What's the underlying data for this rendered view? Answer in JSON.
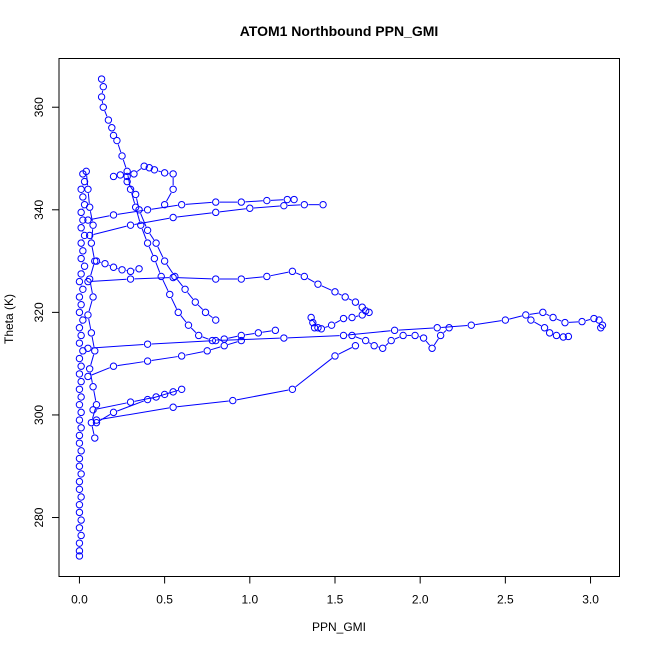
{
  "chart_data": {
    "type": "scatter",
    "title": "ATOM1 Northbound PPN_GMI",
    "xlabel": "PPN_GMI",
    "ylabel": "Theta (K)",
    "xlim": [
      -0.12,
      3.17
    ],
    "ylim": [
      268.5,
      369.5
    ],
    "xticks": [
      0.0,
      0.5,
      1.0,
      1.5,
      2.0,
      2.5,
      3.0
    ],
    "xtick_labels": [
      "0.0",
      "0.5",
      "1.0",
      "1.5",
      "2.0",
      "2.5",
      "3.0"
    ],
    "yticks": [
      280,
      300,
      320,
      340,
      360
    ],
    "ytick_labels": [
      "280",
      "300",
      "320",
      "340",
      "360"
    ],
    "grid": false,
    "marker": "open-circle",
    "connected": true,
    "color": "#0000FF",
    "series": [
      {
        "values": [
          [
            0.0,
            272.5
          ],
          [
            0.0,
            273.5
          ],
          [
            0.0,
            275.0
          ],
          [
            0.01,
            276.5
          ],
          [
            0.0,
            278.0
          ],
          [
            0.01,
            279.5
          ],
          [
            0.0,
            281.0
          ],
          [
            0.0,
            282.5
          ],
          [
            0.01,
            284.0
          ],
          [
            0.0,
            285.5
          ],
          [
            0.0,
            287.0
          ],
          [
            0.01,
            288.5
          ],
          [
            0.0,
            290.0
          ],
          [
            0.0,
            291.5
          ],
          [
            0.01,
            293.0
          ],
          [
            0.0,
            294.5
          ],
          [
            0.0,
            296.0
          ],
          [
            0.01,
            297.5
          ],
          [
            0.0,
            299.0
          ],
          [
            0.01,
            300.5
          ],
          [
            0.0,
            302.0
          ],
          [
            0.01,
            303.5
          ],
          [
            0.0,
            305.0
          ],
          [
            0.01,
            306.5
          ],
          [
            0.0,
            308.0
          ],
          [
            0.01,
            309.5
          ],
          [
            0.0,
            311.0
          ],
          [
            0.02,
            312.5
          ],
          [
            0.0,
            314.0
          ],
          [
            0.01,
            315.5
          ],
          [
            0.0,
            317.0
          ],
          [
            0.02,
            318.5
          ],
          [
            0.0,
            320.0
          ],
          [
            0.01,
            321.5
          ],
          [
            0.0,
            323.0
          ],
          [
            0.02,
            324.5
          ],
          [
            0.0,
            326.0
          ],
          [
            0.01,
            327.5
          ],
          [
            0.03,
            329.0
          ],
          [
            0.01,
            330.5
          ],
          [
            0.02,
            332.0
          ],
          [
            0.01,
            333.5
          ],
          [
            0.03,
            335.0
          ],
          [
            0.01,
            336.5
          ],
          [
            0.02,
            338.0
          ],
          [
            0.01,
            339.5
          ],
          [
            0.03,
            341.0
          ],
          [
            0.02,
            342.5
          ],
          [
            0.01,
            344.0
          ],
          [
            0.03,
            345.5
          ],
          [
            0.02,
            347.0
          ]
        ]
      },
      {
        "values": [
          [
            0.04,
            347.5
          ],
          [
            0.05,
            344.0
          ],
          [
            0.06,
            340.5
          ],
          [
            0.08,
            337.0
          ],
          [
            0.07,
            333.5
          ],
          [
            0.09,
            330.0
          ],
          [
            0.06,
            326.5
          ],
          [
            0.08,
            323.0
          ],
          [
            0.05,
            319.5
          ],
          [
            0.07,
            316.0
          ],
          [
            0.09,
            312.5
          ],
          [
            0.06,
            309.0
          ],
          [
            0.08,
            305.5
          ],
          [
            0.1,
            302.0
          ],
          [
            0.07,
            298.5
          ],
          [
            0.09,
            295.5
          ]
        ]
      },
      {
        "values": [
          [
            0.13,
            365.5
          ],
          [
            0.14,
            364.0
          ],
          [
            0.13,
            362.0
          ],
          [
            0.14,
            360.0
          ],
          [
            0.17,
            357.5
          ],
          [
            0.19,
            356.0
          ],
          [
            0.2,
            354.5
          ],
          [
            0.22,
            353.5
          ],
          [
            0.25,
            350.5
          ],
          [
            0.28,
            347.5
          ],
          [
            0.3,
            344.0
          ],
          [
            0.33,
            340.5
          ],
          [
            0.36,
            337.0
          ],
          [
            0.4,
            333.5
          ],
          [
            0.44,
            330.5
          ],
          [
            0.48,
            327.0
          ],
          [
            0.53,
            323.5
          ],
          [
            0.58,
            320.0
          ],
          [
            0.64,
            317.5
          ],
          [
            0.7,
            315.5
          ],
          [
            0.78,
            314.5
          ],
          [
            0.85,
            314.8
          ],
          [
            0.95,
            315.5
          ],
          [
            1.05,
            316.0
          ],
          [
            1.15,
            316.5
          ]
        ]
      },
      {
        "values": [
          [
            0.2,
            346.5
          ],
          [
            0.24,
            346.8
          ],
          [
            0.28,
            346.5
          ],
          [
            0.32,
            347.0
          ],
          [
            0.38,
            348.5
          ],
          [
            0.41,
            348.2
          ],
          [
            0.44,
            347.8
          ],
          [
            0.5,
            347.2
          ],
          [
            0.55,
            347.0
          ],
          [
            0.55,
            344.0
          ],
          [
            0.5,
            341.0
          ]
        ]
      },
      {
        "values": [
          [
            0.05,
            338.0
          ],
          [
            0.2,
            339.0
          ],
          [
            0.4,
            340.0
          ],
          [
            0.6,
            341.0
          ],
          [
            0.8,
            341.5
          ],
          [
            0.95,
            341.5
          ],
          [
            1.1,
            341.8
          ],
          [
            1.22,
            342.0
          ],
          [
            1.26,
            342.0
          ]
        ]
      },
      {
        "values": [
          [
            0.06,
            335.0
          ],
          [
            0.3,
            337.0
          ],
          [
            0.55,
            338.5
          ],
          [
            0.8,
            339.5
          ],
          [
            1.0,
            340.3
          ],
          [
            1.2,
            340.8
          ],
          [
            1.32,
            341.0
          ],
          [
            1.43,
            341.0
          ]
        ]
      },
      {
        "values": [
          [
            0.05,
            326.0
          ],
          [
            0.3,
            326.5
          ],
          [
            0.55,
            326.8
          ],
          [
            0.8,
            326.5
          ],
          [
            0.95,
            326.5
          ],
          [
            1.1,
            327.0
          ],
          [
            1.25,
            328.0
          ],
          [
            1.32,
            327.0
          ],
          [
            1.4,
            325.5
          ],
          [
            1.5,
            324.0
          ],
          [
            1.56,
            323.0
          ],
          [
            1.62,
            322.0
          ],
          [
            1.66,
            321.0
          ],
          [
            1.68,
            320.3
          ],
          [
            1.7,
            320.0
          ],
          [
            1.66,
            319.5
          ],
          [
            1.6,
            319.0
          ],
          [
            1.55,
            318.8
          ],
          [
            1.48,
            317.5
          ],
          [
            1.42,
            316.8
          ],
          [
            1.38,
            317.0
          ],
          [
            1.37,
            318.0
          ],
          [
            1.36,
            319.0
          ],
          [
            1.4,
            317.0
          ]
        ]
      },
      {
        "values": [
          [
            0.05,
            313.0
          ],
          [
            0.4,
            313.8
          ],
          [
            0.8,
            314.5
          ],
          [
            1.2,
            315.0
          ],
          [
            1.55,
            315.5
          ],
          [
            1.85,
            316.5
          ],
          [
            2.1,
            317.0
          ],
          [
            2.3,
            317.5
          ],
          [
            2.5,
            318.5
          ],
          [
            2.62,
            319.5
          ],
          [
            2.72,
            320.0
          ],
          [
            2.78,
            319.0
          ],
          [
            2.85,
            318.0
          ],
          [
            2.95,
            318.2
          ],
          [
            3.02,
            318.8
          ],
          [
            3.05,
            318.5
          ],
          [
            3.07,
            317.5
          ],
          [
            3.06,
            317.0
          ]
        ]
      },
      {
        "values": [
          [
            2.65,
            318.5
          ],
          [
            2.73,
            317.0
          ],
          [
            2.76,
            316.0
          ],
          [
            2.8,
            315.5
          ],
          [
            2.84,
            315.2
          ],
          [
            2.87,
            315.3
          ]
        ]
      },
      {
        "values": [
          [
            0.05,
            307.5
          ],
          [
            0.2,
            309.5
          ],
          [
            0.4,
            310.5
          ],
          [
            0.6,
            311.5
          ],
          [
            0.75,
            312.5
          ],
          [
            0.85,
            313.5
          ],
          [
            0.95,
            314.5
          ]
        ]
      },
      {
        "values": [
          [
            1.6,
            315.5
          ],
          [
            1.68,
            314.5
          ],
          [
            1.73,
            313.5
          ],
          [
            1.78,
            313.0
          ],
          [
            1.83,
            314.5
          ],
          [
            1.9,
            315.5
          ],
          [
            1.97,
            315.5
          ],
          [
            2.02,
            315.0
          ],
          [
            2.07,
            313.0
          ],
          [
            2.12,
            315.5
          ],
          [
            2.17,
            317.0
          ]
        ]
      },
      {
        "values": [
          [
            0.08,
            301.0
          ],
          [
            0.3,
            302.5
          ],
          [
            0.45,
            303.5
          ],
          [
            0.5,
            304.0
          ],
          [
            0.55,
            304.5
          ],
          [
            0.6,
            305.0
          ],
          [
            0.4,
            303.0
          ],
          [
            0.2,
            300.5
          ],
          [
            0.1,
            298.5
          ]
        ]
      },
      {
        "values": [
          [
            0.1,
            299.0
          ],
          [
            0.55,
            301.5
          ],
          [
            0.9,
            302.8
          ],
          [
            1.25,
            305.0
          ],
          [
            1.5,
            311.5
          ],
          [
            1.62,
            313.5
          ]
        ]
      },
      {
        "values": [
          [
            0.35,
            328.5
          ],
          [
            0.3,
            328.0
          ],
          [
            0.25,
            328.3
          ],
          [
            0.2,
            328.8
          ],
          [
            0.15,
            329.5
          ],
          [
            0.1,
            330.0
          ]
        ]
      },
      {
        "values": [
          [
            0.28,
            345.5
          ],
          [
            0.33,
            343.0
          ],
          [
            0.35,
            340.0
          ],
          [
            0.4,
            336.0
          ],
          [
            0.45,
            333.5
          ],
          [
            0.5,
            330.0
          ],
          [
            0.56,
            327.0
          ],
          [
            0.62,
            324.5
          ],
          [
            0.68,
            322.0
          ],
          [
            0.74,
            320.0
          ],
          [
            0.8,
            318.5
          ]
        ]
      }
    ]
  }
}
